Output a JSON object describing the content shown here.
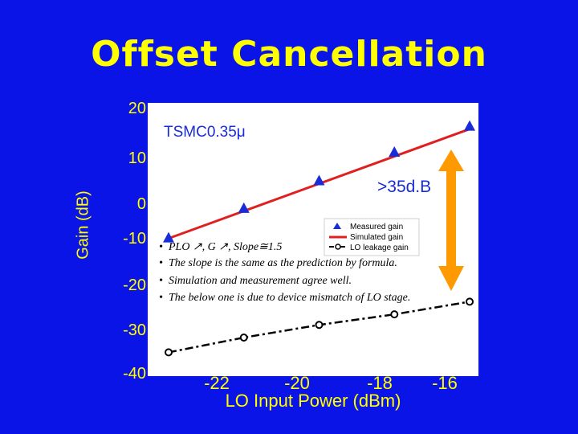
{
  "page": {
    "title": "Offset Cancellation"
  },
  "colors": {
    "background": "#0a14e6",
    "title": "#ffff00",
    "axis_text": "#ffff00",
    "plot_bg": "#ffffff",
    "measured": "#1a2bd8",
    "simulated": "#e02020",
    "leakage": "#000000",
    "arrow": "#ff9900"
  },
  "chart_data": {
    "type": "line",
    "title": "Offset Cancellation",
    "xlabel": "LO Input Power (dBm)",
    "ylabel": "Gain (dB)",
    "xlim": [
      -24.2,
      -15.4
    ],
    "ylim": [
      -40,
      20
    ],
    "y_ticks": [
      "20",
      "10",
      "0",
      "-10",
      "-20",
      "-30",
      "-40"
    ],
    "x_ticks": [
      "-22",
      "-20",
      "-18",
      "-16"
    ],
    "grid": false,
    "series": [
      {
        "name": "Measured gain",
        "style": "triangles",
        "x": [
          -24,
          -22,
          -20,
          -18,
          -16
        ],
        "y": [
          -8.5,
          -1.5,
          4.5,
          10.5,
          16
        ]
      },
      {
        "name": "Simulated gain",
        "style": "solid-line",
        "x": [
          -24,
          -16
        ],
        "y": [
          -8.5,
          15.5
        ]
      },
      {
        "name": "LO leakage gain",
        "style": "dashdot-circles",
        "x": [
          -24,
          -22,
          -20,
          -18,
          -16
        ],
        "y": [
          -35.5,
          -32,
          -29,
          -26.5,
          -23.5
        ]
      }
    ],
    "annotations": {
      "process": "TSMC0.35μ",
      "delta": ">35d.B",
      "bullets": [
        "PLO ↗, G ↗, Slope≅1.5",
        "The slope is the same as the prediction by formula.",
        "Simulation and measurement agree well.",
        "The below one is due to device mismatch of LO stage."
      ]
    }
  }
}
